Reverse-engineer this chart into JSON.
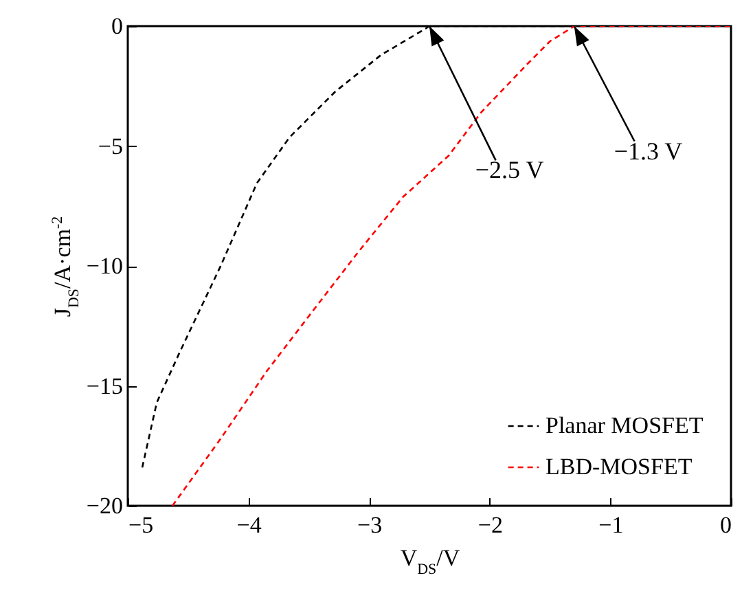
{
  "chart_data": {
    "type": "line",
    "xlabel": "V$_{DS}$/V",
    "ylabel": "J$_{DS}$/A·cm$^{-2}$",
    "xlim": [
      -5,
      0
    ],
    "ylim": [
      -20,
      0
    ],
    "xticks": [
      -5,
      -4,
      -3,
      -2,
      -1,
      0
    ],
    "yticks": [
      -20,
      -15,
      -10,
      -5,
      0
    ],
    "grid": false,
    "legend": "bottom right",
    "line_style": "dashed",
    "marker": "none",
    "series": [
      {
        "name": "Planar MOSFET",
        "color": "#000000",
        "x": [
          -4.88,
          -4.76,
          -4.57,
          -4.23,
          -3.93,
          -3.66,
          -3.28,
          -2.9,
          -2.53,
          -2.5,
          -2,
          -1,
          0
        ],
        "values": [
          -18.4,
          -15.7,
          -13.6,
          -10,
          -6.55,
          -4.64,
          -2.73,
          -1.2,
          -0.1,
          0,
          0,
          0,
          0
        ]
      },
      {
        "name": "LBD-MOSFET",
        "color": "#ff0000",
        "x": [
          -4.63,
          -4.23,
          -3.85,
          -3.47,
          -3.09,
          -2.72,
          -2.34,
          -2.07,
          -1.69,
          -1.5,
          -1.33,
          -1.3,
          -1,
          0
        ],
        "values": [
          -20,
          -17.2,
          -14.4,
          -11.9,
          -9.42,
          -7.13,
          -5.4,
          -3.59,
          -1.59,
          -0.63,
          -0.1,
          0,
          0,
          0
        ]
      }
    ],
    "annotations": [
      {
        "text": "−2.5 V",
        "x": -2.5,
        "y": 0
      },
      {
        "text": "−1.3 V",
        "x": -1.3,
        "y": 0
      }
    ]
  }
}
